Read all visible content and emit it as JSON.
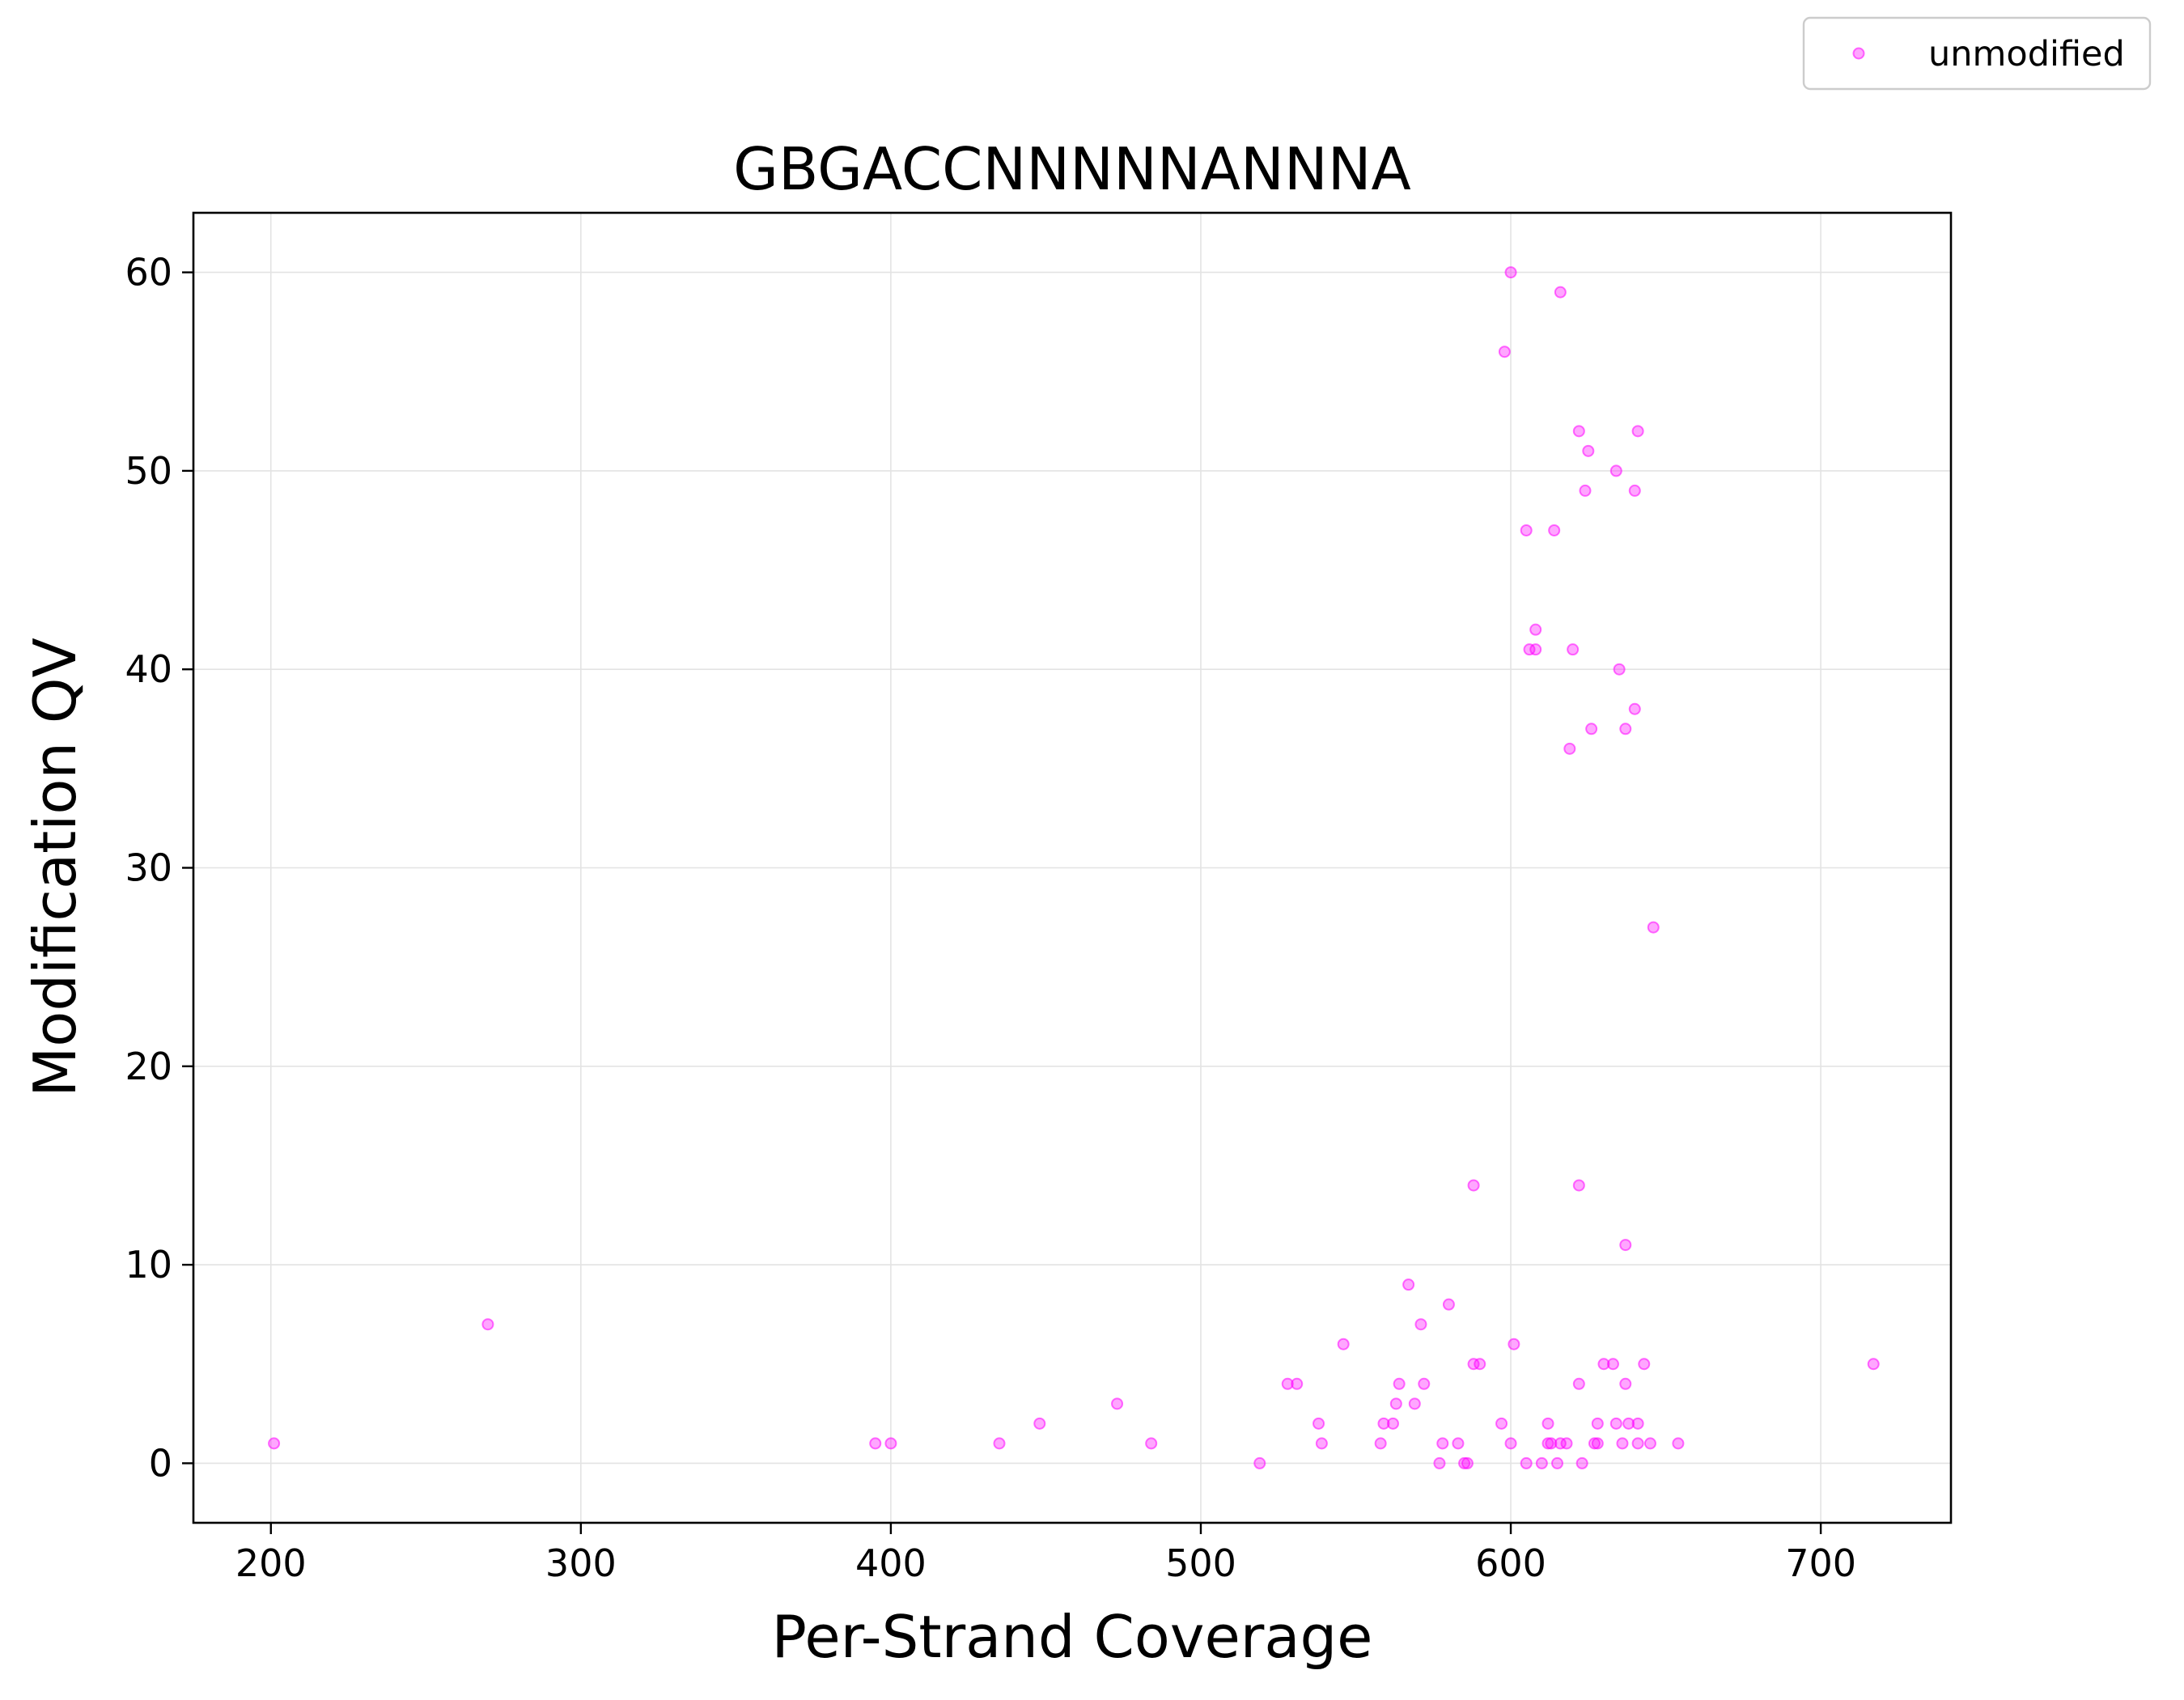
{
  "chart_data": {
    "type": "scatter",
    "title": "GBGACCNNNNNANNNA",
    "xlabel": "Per-Strand Coverage",
    "ylabel": "Modification QV",
    "xlim": [
      175,
      742
    ],
    "ylim": [
      -3,
      63
    ],
    "xticks": [
      "200",
      "300",
      "400",
      "500",
      "600",
      "700"
    ],
    "yticks": [
      "0",
      "10",
      "20",
      "30",
      "40",
      "50",
      "60"
    ],
    "grid": true,
    "legend": {
      "placement": "top-right",
      "entries": [
        "unmodified"
      ]
    },
    "series": [
      {
        "name": "unmodified",
        "color": "#ff00ff",
        "marker": "circle",
        "points": [
          [
            201,
            1
          ],
          [
            270,
            7
          ],
          [
            395,
            1
          ],
          [
            400,
            1
          ],
          [
            435,
            1
          ],
          [
            448,
            2
          ],
          [
            473,
            3
          ],
          [
            484,
            1
          ],
          [
            519,
            0
          ],
          [
            528,
            4
          ],
          [
            531,
            4
          ],
          [
            538,
            2
          ],
          [
            539,
            1
          ],
          [
            546,
            6
          ],
          [
            558,
            1
          ],
          [
            559,
            2
          ],
          [
            562,
            2
          ],
          [
            563,
            3
          ],
          [
            564,
            4
          ],
          [
            567,
            9
          ],
          [
            569,
            3
          ],
          [
            571,
            7
          ],
          [
            572,
            4
          ],
          [
            577,
            0
          ],
          [
            578,
            1
          ],
          [
            580,
            8
          ],
          [
            583,
            1
          ],
          [
            585,
            0
          ],
          [
            586,
            0
          ],
          [
            588,
            14
          ],
          [
            588,
            5
          ],
          [
            590,
            5
          ],
          [
            597,
            2
          ],
          [
            598,
            56
          ],
          [
            600,
            60
          ],
          [
            600,
            1
          ],
          [
            601,
            6
          ],
          [
            605,
            0
          ],
          [
            605,
            47
          ],
          [
            606,
            41
          ],
          [
            608,
            41
          ],
          [
            608,
            42
          ],
          [
            610,
            0
          ],
          [
            612,
            2
          ],
          [
            612,
            1
          ],
          [
            613,
            1
          ],
          [
            614,
            47
          ],
          [
            615,
            0
          ],
          [
            616,
            59
          ],
          [
            616,
            1
          ],
          [
            618,
            1
          ],
          [
            619,
            36
          ],
          [
            620,
            41
          ],
          [
            622,
            52
          ],
          [
            622,
            14
          ],
          [
            622,
            4
          ],
          [
            623,
            0
          ],
          [
            624,
            49
          ],
          [
            625,
            51
          ],
          [
            626,
            37
          ],
          [
            627,
            1
          ],
          [
            628,
            1
          ],
          [
            628,
            2
          ],
          [
            630,
            5
          ],
          [
            633,
            5
          ],
          [
            634,
            2
          ],
          [
            634,
            50
          ],
          [
            635,
            40
          ],
          [
            636,
            1
          ],
          [
            637,
            37
          ],
          [
            637,
            11
          ],
          [
            637,
            4
          ],
          [
            638,
            2
          ],
          [
            640,
            38
          ],
          [
            640,
            49
          ],
          [
            641,
            52
          ],
          [
            641,
            2
          ],
          [
            641,
            1
          ],
          [
            643,
            5
          ],
          [
            645,
            1
          ],
          [
            646,
            27
          ],
          [
            654,
            1
          ],
          [
            717,
            5
          ]
        ]
      }
    ]
  }
}
